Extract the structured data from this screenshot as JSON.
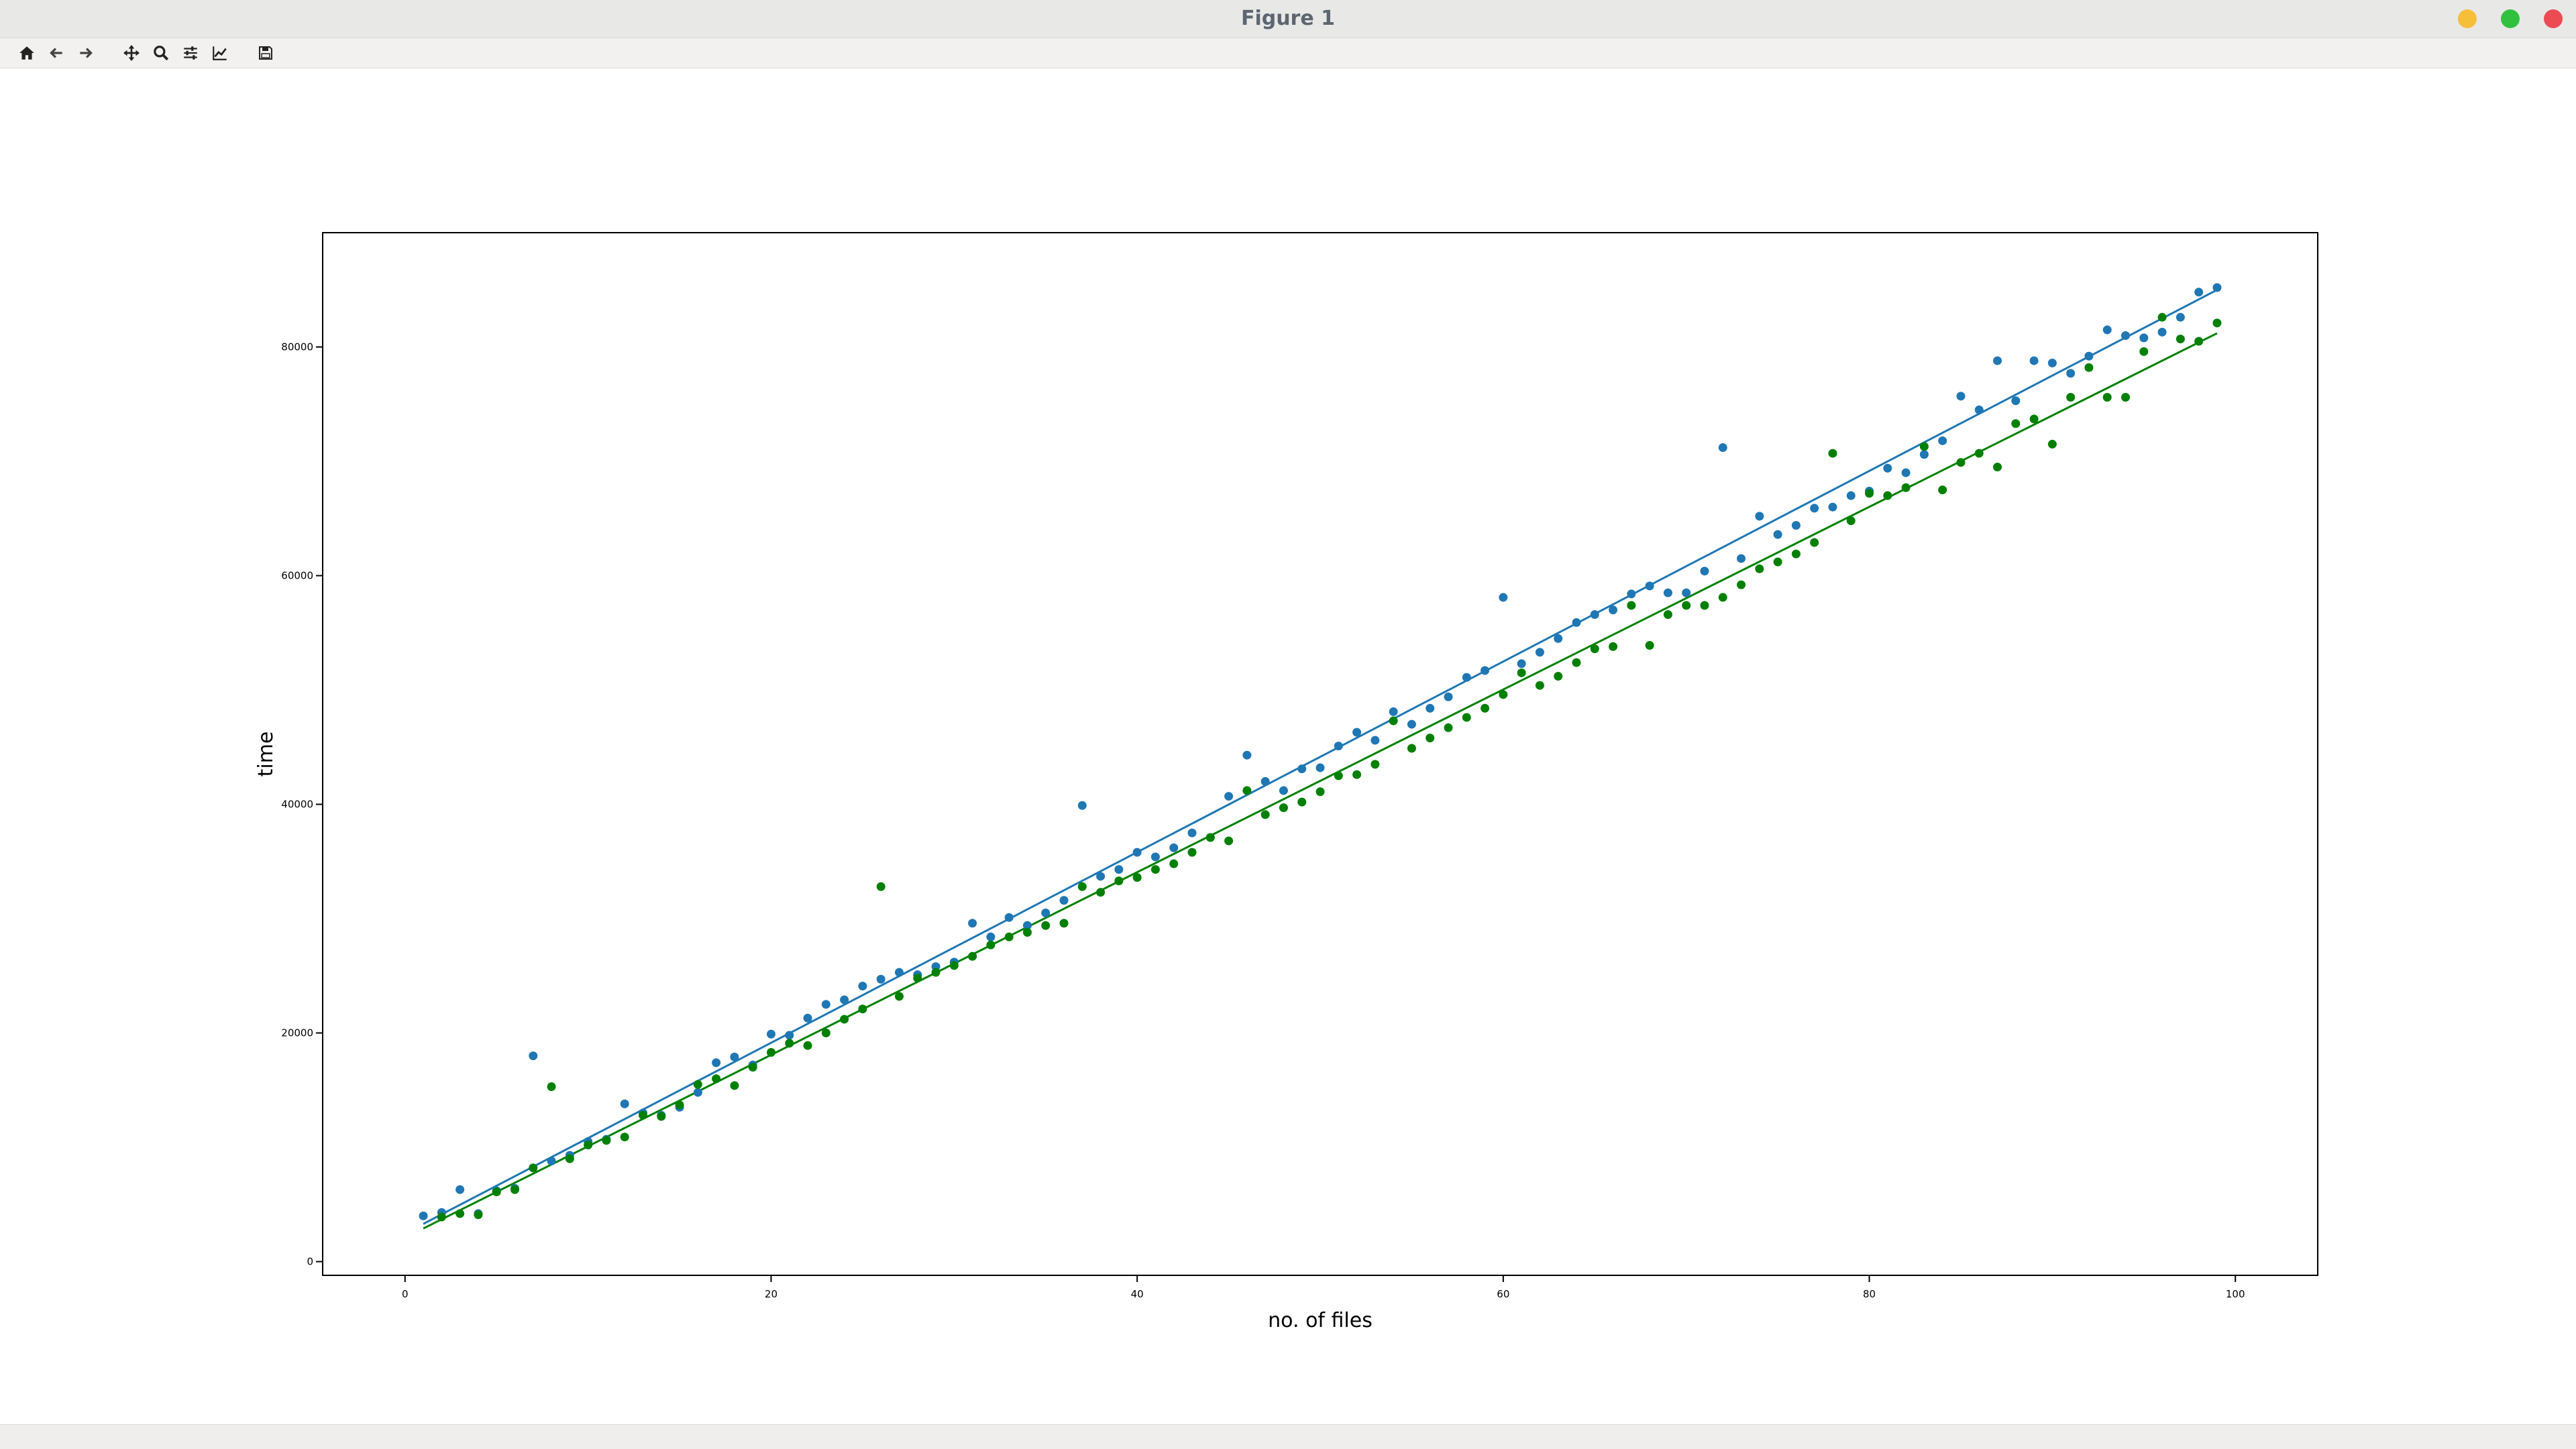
{
  "window": {
    "title": "Figure 1",
    "controls": [
      {
        "name": "minimize",
        "color": "#f6be39"
      },
      {
        "name": "maximize",
        "color": "#32c13f"
      },
      {
        "name": "close",
        "color": "#ec4b54"
      }
    ]
  },
  "toolbar": {
    "buttons": [
      {
        "id": "home",
        "icon": "home-icon"
      },
      {
        "id": "back",
        "icon": "arrow-left-icon"
      },
      {
        "id": "forward",
        "icon": "arrow-right-icon"
      },
      {
        "id": "pan",
        "icon": "move-arrows-icon"
      },
      {
        "id": "zoom",
        "icon": "magnifier-icon"
      },
      {
        "id": "configure-subplots",
        "icon": "sliders-icon"
      },
      {
        "id": "edit-axis",
        "icon": "line-chart-icon"
      },
      {
        "id": "save",
        "icon": "floppy-disk-icon"
      }
    ]
  },
  "colors": {
    "series_1": "#1f77b4",
    "series_2": "#008000",
    "axes": "#000000"
  },
  "chart_data": {
    "type": "scatter",
    "title": "",
    "xlabel": "no. of files",
    "ylabel": "time",
    "xlim": [
      -4.5,
      104.5
    ],
    "ylim": [
      -1200,
      90000
    ],
    "xticks": [
      0,
      20,
      40,
      60,
      80,
      100
    ],
    "yticks": [
      0,
      20000,
      40000,
      60000,
      80000
    ],
    "grid": false,
    "legend": "none",
    "series": [
      {
        "color": "#1f77b4",
        "fit_line": {
          "x": [
            1,
            99
          ],
          "y": [
            3300,
            85000
          ]
        },
        "points": [
          [
            1,
            4000
          ],
          [
            2,
            4300
          ],
          [
            3,
            6300
          ],
          [
            4,
            4200
          ],
          [
            5,
            6200
          ],
          [
            6,
            6400
          ],
          [
            7,
            18000
          ],
          [
            8,
            8800
          ],
          [
            9,
            9300
          ],
          [
            10,
            10500
          ],
          [
            11,
            10700
          ],
          [
            12,
            13800
          ],
          [
            13,
            13000
          ],
          [
            14,
            12800
          ],
          [
            15,
            13500
          ],
          [
            16,
            14800
          ],
          [
            17,
            17400
          ],
          [
            18,
            17900
          ],
          [
            19,
            17200
          ],
          [
            20,
            19900
          ],
          [
            21,
            19800
          ],
          [
            22,
            21300
          ],
          [
            23,
            22500
          ],
          [
            24,
            22900
          ],
          [
            25,
            24100
          ],
          [
            26,
            24700
          ],
          [
            27,
            25300
          ],
          [
            28,
            25100
          ],
          [
            29,
            25800
          ],
          [
            30,
            26200
          ],
          [
            31,
            29600
          ],
          [
            32,
            28400
          ],
          [
            33,
            30100
          ],
          [
            34,
            29400
          ],
          [
            35,
            30500
          ],
          [
            36,
            31600
          ],
          [
            37,
            39900
          ],
          [
            38,
            33700
          ],
          [
            39,
            34300
          ],
          [
            40,
            35800
          ],
          [
            41,
            35400
          ],
          [
            42,
            36200
          ],
          [
            43,
            37500
          ],
          [
            44,
            37100
          ],
          [
            45,
            40700
          ],
          [
            46,
            44300
          ],
          [
            47,
            42000
          ],
          [
            48,
            41200
          ],
          [
            49,
            43100
          ],
          [
            50,
            43200
          ],
          [
            51,
            45100
          ],
          [
            52,
            46300
          ],
          [
            53,
            45600
          ],
          [
            54,
            48100
          ],
          [
            55,
            47000
          ],
          [
            56,
            48400
          ],
          [
            57,
            49400
          ],
          [
            58,
            51100
          ],
          [
            59,
            51700
          ],
          [
            60,
            58100
          ],
          [
            61,
            52300
          ],
          [
            62,
            53300
          ],
          [
            63,
            54500
          ],
          [
            64,
            55900
          ],
          [
            65,
            56600
          ],
          [
            66,
            57000
          ],
          [
            67,
            58400
          ],
          [
            68,
            59100
          ],
          [
            69,
            58500
          ],
          [
            70,
            58500
          ],
          [
            71,
            60400
          ],
          [
            72,
            71200
          ],
          [
            73,
            61500
          ],
          [
            74,
            65200
          ],
          [
            75,
            63600
          ],
          [
            76,
            64400
          ],
          [
            77,
            65900
          ],
          [
            78,
            66000
          ],
          [
            79,
            67000
          ],
          [
            80,
            67400
          ],
          [
            81,
            69400
          ],
          [
            82,
            69000
          ],
          [
            83,
            70600
          ],
          [
            84,
            71800
          ],
          [
            85,
            75700
          ],
          [
            86,
            74500
          ],
          [
            87,
            78800
          ],
          [
            88,
            75300
          ],
          [
            89,
            78800
          ],
          [
            90,
            78600
          ],
          [
            91,
            77700
          ],
          [
            92,
            79200
          ],
          [
            93,
            81500
          ],
          [
            94,
            81000
          ],
          [
            95,
            80800
          ],
          [
            96,
            81300
          ],
          [
            97,
            82600
          ],
          [
            98,
            84800
          ],
          [
            99,
            85200
          ]
        ]
      },
      {
        "color": "#008000",
        "fit_line": {
          "x": [
            1,
            99
          ],
          "y": [
            2900,
            81200
          ]
        },
        "points": [
          [
            2,
            3900
          ],
          [
            3,
            4200
          ],
          [
            4,
            4100
          ],
          [
            5,
            6100
          ],
          [
            6,
            6300
          ],
          [
            7,
            8200
          ],
          [
            8,
            15300
          ],
          [
            9,
            9000
          ],
          [
            10,
            10200
          ],
          [
            11,
            10600
          ],
          [
            12,
            10900
          ],
          [
            13,
            12800
          ],
          [
            14,
            12700
          ],
          [
            15,
            13700
          ],
          [
            16,
            15500
          ],
          [
            17,
            16000
          ],
          [
            18,
            15400
          ],
          [
            19,
            17000
          ],
          [
            20,
            18300
          ],
          [
            21,
            19100
          ],
          [
            22,
            18900
          ],
          [
            23,
            20000
          ],
          [
            24,
            21200
          ],
          [
            25,
            22100
          ],
          [
            26,
            32800
          ],
          [
            27,
            23200
          ],
          [
            28,
            24800
          ],
          [
            29,
            25300
          ],
          [
            30,
            25900
          ],
          [
            31,
            26700
          ],
          [
            32,
            27700
          ],
          [
            33,
            28400
          ],
          [
            34,
            28800
          ],
          [
            35,
            29400
          ],
          [
            36,
            29600
          ],
          [
            37,
            32800
          ],
          [
            38,
            32300
          ],
          [
            39,
            33300
          ],
          [
            40,
            33600
          ],
          [
            41,
            34300
          ],
          [
            42,
            34800
          ],
          [
            43,
            35800
          ],
          [
            44,
            37100
          ],
          [
            45,
            36800
          ],
          [
            46,
            41200
          ],
          [
            47,
            39100
          ],
          [
            48,
            39700
          ],
          [
            49,
            40200
          ],
          [
            50,
            41100
          ],
          [
            51,
            42500
          ],
          [
            52,
            42600
          ],
          [
            53,
            43500
          ],
          [
            54,
            47300
          ],
          [
            55,
            44900
          ],
          [
            56,
            45800
          ],
          [
            57,
            46700
          ],
          [
            58,
            47600
          ],
          [
            59,
            48400
          ],
          [
            60,
            49600
          ],
          [
            61,
            51500
          ],
          [
            62,
            50400
          ],
          [
            63,
            51200
          ],
          [
            64,
            52400
          ],
          [
            65,
            53600
          ],
          [
            66,
            53800
          ],
          [
            67,
            57400
          ],
          [
            68,
            53900
          ],
          [
            69,
            56600
          ],
          [
            70,
            57400
          ],
          [
            71,
            57400
          ],
          [
            72,
            58100
          ],
          [
            73,
            59200
          ],
          [
            74,
            60600
          ],
          [
            75,
            61200
          ],
          [
            76,
            61900
          ],
          [
            77,
            62900
          ],
          [
            78,
            70700
          ],
          [
            79,
            64800
          ],
          [
            80,
            67200
          ],
          [
            81,
            67000
          ],
          [
            82,
            67700
          ],
          [
            83,
            71300
          ],
          [
            84,
            67500
          ],
          [
            85,
            69900
          ],
          [
            86,
            70700
          ],
          [
            87,
            69500
          ],
          [
            88,
            73300
          ],
          [
            89,
            73700
          ],
          [
            90,
            71500
          ],
          [
            91,
            75600
          ],
          [
            92,
            78200
          ],
          [
            93,
            75600
          ],
          [
            94,
            75600
          ],
          [
            95,
            79600
          ],
          [
            96,
            82600
          ],
          [
            97,
            80700
          ],
          [
            98,
            80500
          ],
          [
            99,
            82100
          ]
        ]
      }
    ]
  }
}
